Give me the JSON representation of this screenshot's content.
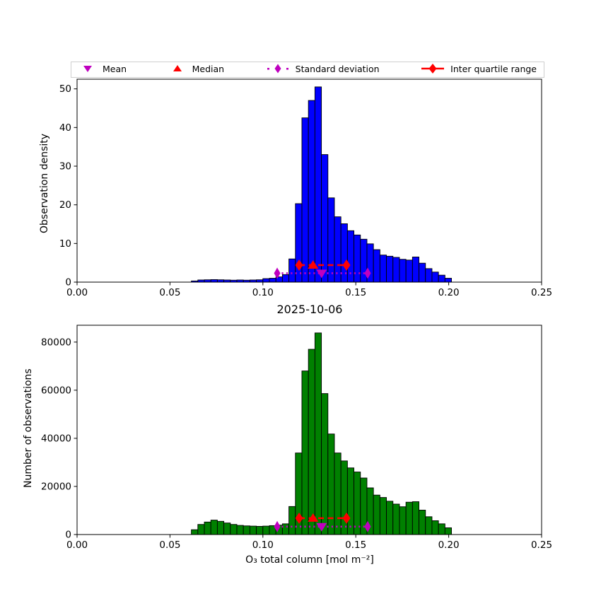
{
  "title": "2025-10-06",
  "xlabel": "O₃ total column [mol m⁻²]",
  "legend": {
    "items": [
      {
        "label": "Mean",
        "marker": "triangle-down",
        "color": "#BF00BF"
      },
      {
        "label": "Median",
        "marker": "triangle-up",
        "color": "#FF0000"
      },
      {
        "label": "Standard deviation",
        "marker": "thin-diamond-dotted-line",
        "color": "#BF00BF"
      },
      {
        "label": "Inter quartile range",
        "marker": "diamond-dashed-line",
        "color": "#FF0000"
      }
    ]
  },
  "chart_data": [
    {
      "type": "bar",
      "name": "observation-density-histogram",
      "ylabel": "Observation density",
      "bar_color": "#0000FF",
      "bar_edge_color": "#000000",
      "xlim": [
        0,
        0.25
      ],
      "ylim": [
        0,
        52.5
      ],
      "xticks": [
        0.0,
        0.05,
        0.1,
        0.15,
        0.2,
        0.25
      ],
      "xtick_labels": [
        "0.00",
        "0.05",
        "0.10",
        "0.15",
        "0.20",
        "0.25"
      ],
      "yticks": [
        0,
        10,
        20,
        30,
        40,
        50
      ],
      "ytick_labels": [
        "0",
        "10",
        "20",
        "30",
        "40",
        "50"
      ],
      "bin_start": 0.0615,
      "bin_width": 0.0035,
      "values": [
        0.3,
        0.55,
        0.6,
        0.65,
        0.6,
        0.55,
        0.5,
        0.55,
        0.5,
        0.55,
        0.6,
        0.9,
        1.0,
        1.35,
        1.95,
        6.0,
        20.3,
        42.5,
        47.0,
        50.5,
        33.0,
        21.8,
        16.9,
        15.1,
        13.3,
        12.2,
        11.1,
        9.9,
        8.4,
        7.0,
        6.7,
        6.4,
        5.9,
        5.7,
        6.5,
        4.9,
        3.5,
        2.6,
        1.8,
        1.0
      ],
      "stats": {
        "mean": 0.1316,
        "median": 0.127,
        "std_low": 0.1077,
        "std_high": 0.1564,
        "q1": 0.1195,
        "q3": 0.145,
        "mean_std_marker_y": 2.3,
        "median_iqr_marker_y": 4.4
      }
    },
    {
      "type": "bar",
      "name": "number-of-observations-histogram",
      "ylabel": "Number of observations",
      "bar_color": "#008000",
      "bar_edge_color": "#000000",
      "xlim": [
        0,
        0.25
      ],
      "ylim": [
        0,
        87000
      ],
      "xticks": [
        0.0,
        0.05,
        0.1,
        0.15,
        0.2,
        0.25
      ],
      "xtick_labels": [
        "0.00",
        "0.05",
        "0.10",
        "0.15",
        "0.20",
        "0.25"
      ],
      "yticks": [
        0,
        20000,
        40000,
        60000,
        80000
      ],
      "ytick_labels": [
        "0",
        "20000",
        "40000",
        "60000",
        "80000"
      ],
      "bin_start": 0.0615,
      "bin_width": 0.0035,
      "values": [
        2000,
        4200,
        5200,
        6000,
        5500,
        4800,
        4200,
        3800,
        3600,
        3500,
        3400,
        3500,
        3700,
        3900,
        4450,
        11650,
        33900,
        68000,
        77000,
        83800,
        58600,
        41800,
        33900,
        30600,
        27700,
        26000,
        23500,
        19400,
        16400,
        15400,
        13850,
        12650,
        11550,
        13450,
        13650,
        10150,
        7400,
        5750,
        4450,
        2800
      ],
      "stats": {
        "mean": 0.1316,
        "median": 0.127,
        "std_low": 0.1077,
        "std_high": 0.1564,
        "q1": 0.1195,
        "q3": 0.145,
        "mean_std_marker_y": 3300,
        "median_iqr_marker_y": 6800
      }
    }
  ],
  "colors": {
    "mean_std": "#BF00BF",
    "median_iqr": "#FF0000",
    "spine": "#000000"
  }
}
